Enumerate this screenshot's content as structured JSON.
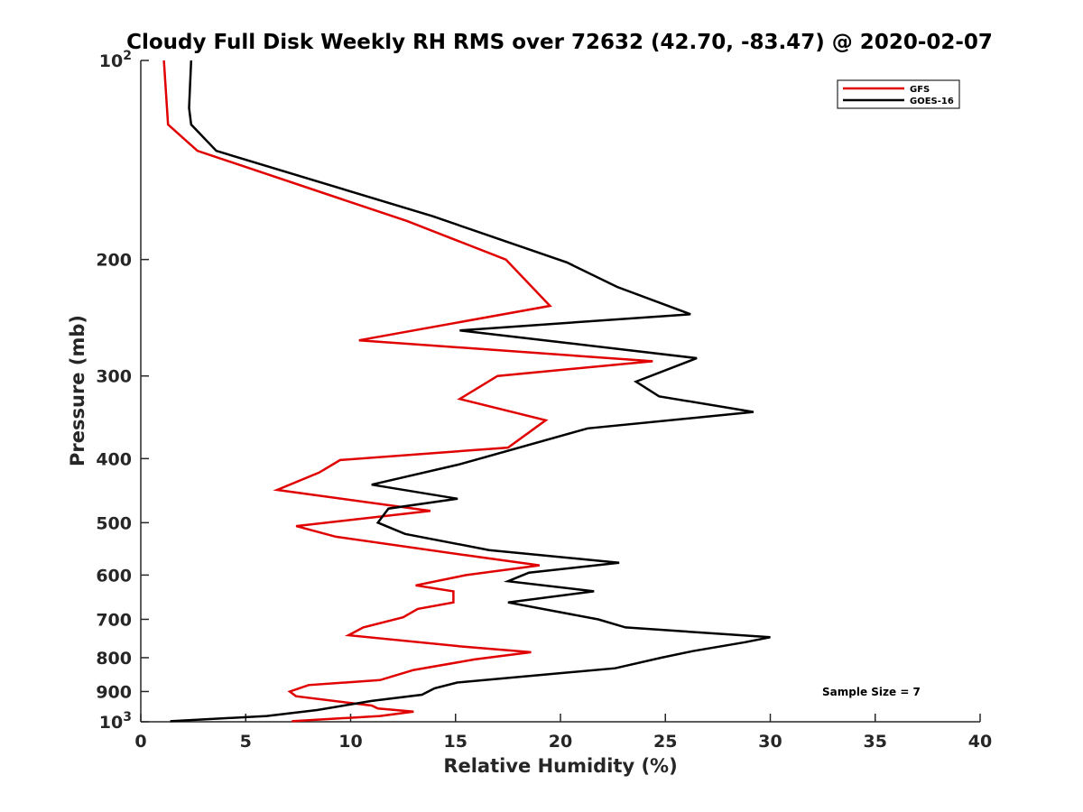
{
  "chart_data": {
    "type": "line",
    "title": "Cloudy Full Disk Weekly RH RMS over 72632 (42.70, -83.47) @ 2020-02-07",
    "xlabel": "Relative Humidity (%)",
    "ylabel": "Pressure (mb)",
    "xlim": [
      0,
      40
    ],
    "ylim": [
      100,
      1000
    ],
    "yscale": "log",
    "y_reversed": true,
    "x_ticks": [
      "0",
      "5",
      "10",
      "15",
      "20",
      "25",
      "30",
      "35",
      "40"
    ],
    "y_ticks": [
      {
        "value": 100,
        "label": "10",
        "sup": "2"
      },
      {
        "value": 200,
        "label": "200",
        "sup": ""
      },
      {
        "value": 300,
        "label": "300",
        "sup": ""
      },
      {
        "value": 400,
        "label": "400",
        "sup": ""
      },
      {
        "value": 500,
        "label": "500",
        "sup": ""
      },
      {
        "value": 600,
        "label": "600",
        "sup": ""
      },
      {
        "value": 700,
        "label": "700",
        "sup": ""
      },
      {
        "value": 800,
        "label": "800",
        "sup": ""
      },
      {
        "value": 900,
        "label": "900",
        "sup": ""
      },
      {
        "value": 1000,
        "label": "10",
        "sup": "3"
      }
    ],
    "legend_position": "top-right",
    "annotation": "Sample Size = 7",
    "series": [
      {
        "name": "GFS",
        "color": "#e00000",
        "points": [
          [
            1.1,
            100
          ],
          [
            1.3,
            125
          ],
          [
            2.7,
            137
          ],
          [
            12.7,
            175
          ],
          [
            17.4,
            200
          ],
          [
            19.5,
            235
          ],
          [
            10.4,
            265
          ],
          [
            24.4,
            285
          ],
          [
            17.0,
            300
          ],
          [
            15.2,
            325
          ],
          [
            19.3,
            350
          ],
          [
            17.5,
            385
          ],
          [
            9.5,
            402
          ],
          [
            8.5,
            420
          ],
          [
            6.5,
            446
          ],
          [
            13.8,
            480
          ],
          [
            7.4,
            506
          ],
          [
            9.3,
            525
          ],
          [
            15.5,
            560
          ],
          [
            19.0,
            580
          ],
          [
            15.5,
            600
          ],
          [
            13.1,
            622
          ],
          [
            14.9,
            635
          ],
          [
            14.9,
            660
          ],
          [
            13.2,
            675
          ],
          [
            12.5,
            695
          ],
          [
            10.6,
            720
          ],
          [
            9.9,
            740
          ],
          [
            15.4,
            770
          ],
          [
            18.6,
            785
          ],
          [
            15.9,
            805
          ],
          [
            13.0,
            835
          ],
          [
            11.4,
            865
          ],
          [
            8.0,
            880
          ],
          [
            7.1,
            900
          ],
          [
            7.4,
            915
          ],
          [
            11.0,
            945
          ],
          [
            11.3,
            955
          ],
          [
            13.0,
            965
          ],
          [
            11.4,
            980
          ],
          [
            7.2,
            998
          ]
        ]
      },
      {
        "name": "GOES-16",
        "color": "#000000",
        "points": [
          [
            2.4,
            100
          ],
          [
            2.3,
            118
          ],
          [
            2.4,
            125
          ],
          [
            3.6,
            137
          ],
          [
            13.9,
            172
          ],
          [
            20.3,
            202
          ],
          [
            22.7,
            220
          ],
          [
            26.2,
            242
          ],
          [
            15.2,
            256
          ],
          [
            26.5,
            282
          ],
          [
            23.6,
            306
          ],
          [
            24.7,
            322
          ],
          [
            29.2,
            340
          ],
          [
            21.3,
            360
          ],
          [
            15.2,
            408
          ],
          [
            11.0,
            438
          ],
          [
            15.1,
            460
          ],
          [
            11.8,
            476
          ],
          [
            11.3,
            500
          ],
          [
            12.6,
            520
          ],
          [
            16.6,
            550
          ],
          [
            22.8,
            575
          ],
          [
            18.5,
            595
          ],
          [
            17.5,
            613
          ],
          [
            21.6,
            635
          ],
          [
            17.5,
            660
          ],
          [
            21.8,
            700
          ],
          [
            23.1,
            720
          ],
          [
            30.0,
            745
          ],
          [
            28.8,
            758
          ],
          [
            26.3,
            782
          ],
          [
            24.8,
            800
          ],
          [
            22.6,
            830
          ],
          [
            15.1,
            872
          ],
          [
            14.0,
            890
          ],
          [
            13.4,
            910
          ],
          [
            11.0,
            930
          ],
          [
            8.4,
            960
          ],
          [
            6.0,
            980
          ],
          [
            1.4,
            998
          ]
        ]
      }
    ]
  }
}
